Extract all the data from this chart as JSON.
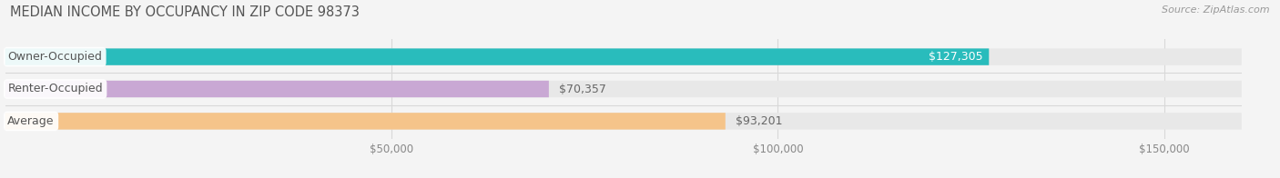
{
  "title": "MEDIAN INCOME BY OCCUPANCY IN ZIP CODE 98373",
  "source": "Source: ZipAtlas.com",
  "categories": [
    "Owner-Occupied",
    "Renter-Occupied",
    "Average"
  ],
  "values": [
    127305,
    70357,
    93201
  ],
  "bar_colors": [
    "#29bcbc",
    "#c9a8d4",
    "#f5c48a"
  ],
  "value_labels": [
    "$127,305",
    "$70,357",
    "$93,201"
  ],
  "value_label_inside": [
    true,
    false,
    false
  ],
  "xlim_max": 160000,
  "xticks": [
    50000,
    100000,
    150000
  ],
  "xtick_labels": [
    "$50,000",
    "$100,000",
    "$150,000"
  ],
  "bar_height": 0.52,
  "track_color": "#e8e8e8",
  "background_color": "#f4f4f4",
  "title_fontsize": 10.5,
  "source_fontsize": 8,
  "label_fontsize": 9,
  "tick_fontsize": 8.5,
  "title_color": "#555555",
  "source_color": "#999999",
  "tick_color": "#888888",
  "grid_color": "#d8d8d8",
  "label_text_color": "#555555",
  "value_inside_color": "#ffffff",
  "value_outside_color": "#666666"
}
